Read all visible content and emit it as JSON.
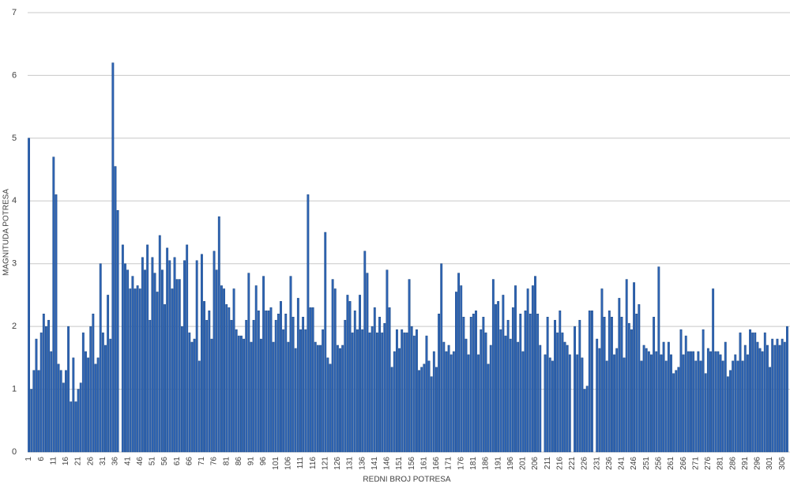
{
  "chart_data": {
    "type": "bar",
    "y_label": "MAGNITUDA POTRESA",
    "x_label": "REDNI BROJ POTRESA",
    "color": "#2e64b4",
    "ylim": [
      0,
      7
    ],
    "yticks": [
      0,
      1,
      2,
      3,
      4,
      5,
      6,
      7
    ],
    "grid": true,
    "categories": [
      1,
      null,
      null,
      null,
      null,
      6,
      null,
      null,
      null,
      null,
      11,
      null,
      null,
      null,
      null,
      16,
      null,
      null,
      null,
      null,
      21,
      null,
      null,
      null,
      null,
      26,
      null,
      null,
      null,
      null,
      31,
      null,
      null,
      null,
      null,
      36,
      null,
      null,
      null,
      null,
      41,
      null,
      null,
      null,
      null,
      46,
      null,
      null,
      null,
      null,
      51,
      null,
      null,
      null,
      null,
      56,
      null,
      null,
      null,
      null,
      61,
      null,
      null,
      null,
      null,
      66,
      null,
      null,
      null,
      null,
      71,
      null,
      null,
      null,
      null,
      76,
      null,
      null,
      null,
      null,
      81,
      null,
      null,
      null,
      null,
      86,
      null,
      null,
      null,
      null,
      91,
      null,
      null,
      null,
      null,
      96,
      null,
      null,
      null,
      null,
      101,
      null,
      null,
      null,
      null,
      106,
      null,
      null,
      null,
      null,
      111,
      null,
      null,
      null,
      null,
      116,
      null,
      null,
      null,
      null,
      121,
      null,
      null,
      null,
      null,
      126,
      null,
      null,
      null,
      null,
      131,
      null,
      null,
      null,
      null,
      136,
      null,
      null,
      null,
      null,
      141,
      null,
      null,
      null,
      null,
      146,
      null,
      null,
      null,
      null,
      151,
      null,
      null,
      null,
      null,
      156,
      null,
      null,
      null,
      null,
      161,
      null,
      null,
      null,
      null,
      166,
      null,
      null,
      null,
      null,
      171,
      null,
      null,
      null,
      null,
      176,
      null,
      null,
      null,
      null,
      181,
      null,
      null,
      null,
      null,
      186,
      null,
      null,
      null,
      null,
      191,
      null,
      null,
      null,
      null,
      196,
      null,
      null,
      null,
      null,
      201,
      null,
      null,
      null,
      null,
      206,
      null,
      null,
      null,
      null,
      211,
      null,
      null,
      null,
      null,
      216,
      null,
      null,
      null,
      null,
      221,
      null,
      null,
      null,
      null,
      226,
      null,
      null,
      null,
      null,
      231,
      null,
      null,
      null,
      null,
      236,
      null,
      null,
      null,
      null,
      241,
      null,
      null,
      null,
      null,
      246,
      null,
      null,
      null,
      null,
      251,
      null,
      null,
      null,
      null,
      256,
      null,
      null,
      null,
      null,
      261,
      null,
      null,
      null,
      null,
      266,
      null,
      null,
      null,
      null,
      271,
      null,
      null,
      null,
      null,
      276,
      null,
      null,
      null,
      null,
      281,
      null,
      null,
      null,
      null,
      286,
      null,
      null,
      null,
      null,
      291,
      null,
      null,
      null,
      null,
      296,
      null,
      null,
      null,
      null,
      301,
      null,
      null,
      null,
      null,
      306,
      null,
      null
    ],
    "values": [
      5.0,
      1.0,
      1.3,
      1.8,
      1.3,
      1.9,
      2.2,
      2.0,
      2.1,
      1.6,
      4.7,
      4.1,
      1.4,
      1.3,
      1.1,
      1.3,
      2.0,
      0.8,
      1.5,
      0.8,
      1.0,
      1.1,
      1.9,
      1.6,
      1.5,
      2.0,
      2.2,
      1.4,
      1.5,
      3.0,
      1.9,
      1.7,
      2.5,
      1.8,
      6.2,
      4.55,
      3.85,
      null,
      3.3,
      3.0,
      2.9,
      2.6,
      2.8,
      2.6,
      2.65,
      2.6,
      3.1,
      2.9,
      3.3,
      2.1,
      3.1,
      2.85,
      2.55,
      3.45,
      2.9,
      2.35,
      3.25,
      3.05,
      2.6,
      3.1,
      2.75,
      2.75,
      2.0,
      3.05,
      3.3,
      1.9,
      1.75,
      1.8,
      3.05,
      1.45,
      3.15,
      2.4,
      2.1,
      2.25,
      1.8,
      3.2,
      2.9,
      3.75,
      2.65,
      2.6,
      2.35,
      2.3,
      2.1,
      2.6,
      1.95,
      1.85,
      1.85,
      1.8,
      2.1,
      2.85,
      1.75,
      2.1,
      2.65,
      2.25,
      1.8,
      2.8,
      2.25,
      2.25,
      2.3,
      1.75,
      2.1,
      2.2,
      2.4,
      1.95,
      2.2,
      1.75,
      2.8,
      2.15,
      1.65,
      2.45,
      1.95,
      2.15,
      1.95,
      4.1,
      2.3,
      2.3,
      1.75,
      1.7,
      1.7,
      1.95,
      3.5,
      1.5,
      1.4,
      2.75,
      2.6,
      1.7,
      1.65,
      1.7,
      2.1,
      2.5,
      2.4,
      1.9,
      2.25,
      1.95,
      2.5,
      1.95,
      3.2,
      2.85,
      1.9,
      2.0,
      2.3,
      1.9,
      2.15,
      1.9,
      2.05,
      2.9,
      2.3,
      1.35,
      1.6,
      1.95,
      1.65,
      1.95,
      1.9,
      1.9,
      2.75,
      2.0,
      1.85,
      1.95,
      1.3,
      1.35,
      1.4,
      1.85,
      1.45,
      1.2,
      1.6,
      1.35,
      2.2,
      3.0,
      1.75,
      1.6,
      1.7,
      1.55,
      1.6,
      2.55,
      2.85,
      2.65,
      2.15,
      1.8,
      1.55,
      2.15,
      2.2,
      2.25,
      1.55,
      1.95,
      2.15,
      1.9,
      1.4,
      1.7,
      2.75,
      2.35,
      2.4,
      1.95,
      2.5,
      1.85,
      2.1,
      1.8,
      2.3,
      2.65,
      1.75,
      2.2,
      1.6,
      2.25,
      2.6,
      2.2,
      2.65,
      2.8,
      2.2,
      1.7,
      null,
      1.55,
      2.15,
      1.5,
      1.45,
      2.1,
      1.9,
      2.25,
      1.9,
      1.75,
      1.7,
      1.55,
      null,
      2.0,
      1.55,
      2.1,
      1.5,
      1.0,
      1.05,
      2.25,
      2.25,
      null,
      1.8,
      1.65,
      2.6,
      2.15,
      1.45,
      2.25,
      2.15,
      1.55,
      1.65,
      2.45,
      2.15,
      1.5,
      2.75,
      2.05,
      1.95,
      2.7,
      2.2,
      2.35,
      1.45,
      1.7,
      1.65,
      1.6,
      1.55,
      2.15,
      1.6,
      2.95,
      1.55,
      1.75,
      1.45,
      1.75,
      1.55,
      1.25,
      1.3,
      1.35,
      1.95,
      1.55,
      1.85,
      1.6,
      1.6,
      1.6,
      1.45,
      1.6,
      1.45,
      1.95,
      1.25,
      1.65,
      1.6,
      2.6,
      1.6,
      1.6,
      1.55,
      1.45,
      1.75,
      1.2,
      1.3,
      1.45,
      1.55,
      1.45,
      1.9,
      1.45,
      1.7,
      1.55,
      1.95,
      1.9,
      1.9,
      1.75,
      1.65,
      1.6,
      1.9,
      1.7,
      1.35,
      1.8,
      1.7,
      1.8,
      1.7,
      1.8,
      1.75,
      2.0
    ]
  }
}
